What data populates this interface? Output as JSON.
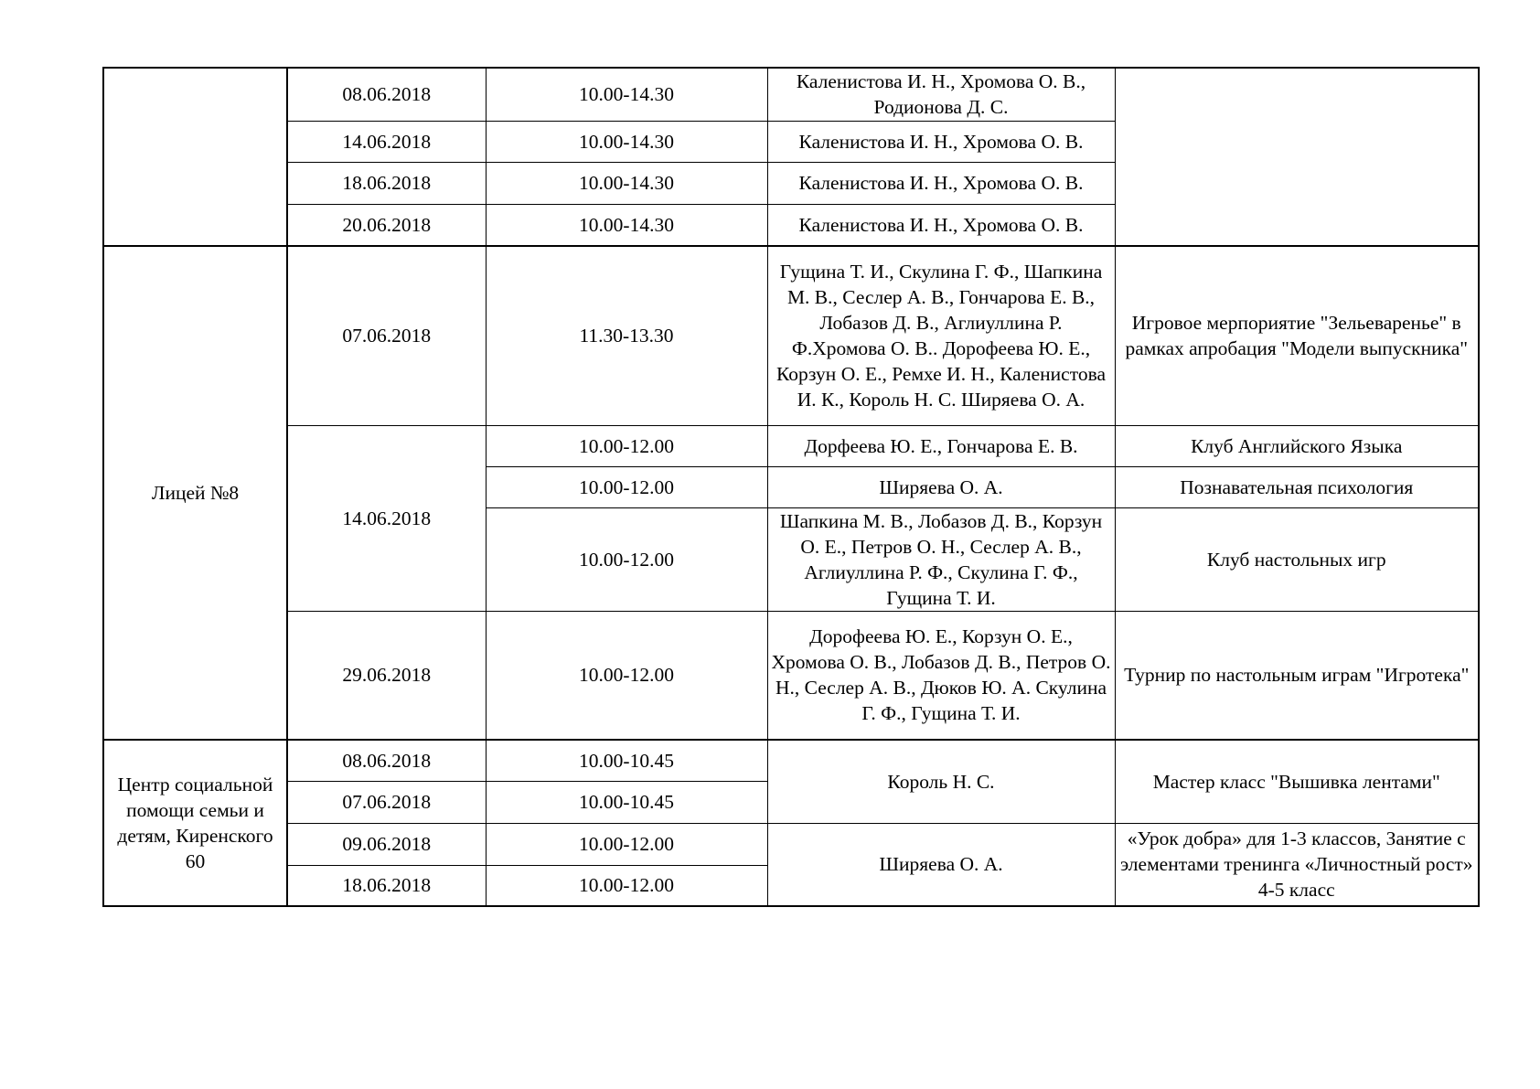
{
  "groups": [
    {
      "venue": "",
      "rows": [
        {
          "date": "08.06.2018",
          "time": "10.00-14.30",
          "staff": "Каленистова И. Н., Хромова О. В., Родионова Д. С."
        },
        {
          "date": "14.06.2018",
          "time": "10.00-14.30",
          "staff": "Каленистова И. Н., Хромова О. В."
        },
        {
          "date": "18.06.2018",
          "time": "10.00-14.30",
          "staff": "Каленистова И. Н., Хромова О. В."
        },
        {
          "date": "20.06.2018",
          "time": "10.00-14.30",
          "staff": "Каленистова И. Н., Хромова О. В."
        }
      ],
      "event": ""
    },
    {
      "venue": "Лицей №8",
      "rows": [
        {
          "date": "07.06.2018",
          "time": "11.30-13.30",
          "staff": "Гущина Т. И., Скулина Г. Ф., Шапкина М. В., Сеслер А. В., Гончарова Е. В., Лобазов Д. В., Аглиуллина Р. Ф.Хромова О. В.. Дорофеева Ю. Е., Корзун О. Е., Ремхе И. Н., Каленистова И. К., Король Н. С. Ширяева О. А.",
          "event": "Игровое мерпориятие \"Зельеваренье\" в рамках апробация \"Модели выпускника\""
        },
        {
          "date": "14.06.2018",
          "time": "10.00-12.00",
          "staff": "Дорфеева Ю. Е., Гончарова Е. В.",
          "event": "Клуб Английского Языка"
        },
        {
          "time": "10.00-12.00",
          "staff": "Ширяева О. А.",
          "event": "Познавательная психология"
        },
        {
          "time": "10.00-12.00",
          "staff": "Шапкина М. В., Лобазов Д. В., Корзун О. Е., Петров О. Н., Сеслер А. В., Аглиуллина Р. Ф., Скулина Г. Ф., Гущина Т. И.",
          "event": "Клуб настольных игр"
        },
        {
          "date": "29.06.2018",
          "time": "10.00-12.00",
          "staff": "Дорофеева Ю. Е., Корзун О. Е., Хромова О. В., Лобазов Д. В., Петров О. Н., Сеслер А. В., Дюков Ю. А. Скулина Г. Ф., Гущина Т. И.",
          "event": "Турнир по настольным играм \"Игротека\""
        }
      ]
    },
    {
      "venue": "Центр социальной помощи семьи и детям, Киренского 60",
      "rows": [
        {
          "date": "08.06.2018",
          "time": "10.00-10.45",
          "staff": "Король Н. С.",
          "event": "Мастер класс \"Вышивка лентами\""
        },
        {
          "date": "07.06.2018",
          "time": "10.00-10.45"
        },
        {
          "date": "09.06.2018",
          "time": "10.00-12.00",
          "staff": "Ширяева О. А.",
          "event": "«Урок добра» для 1-3 классов, Занятие с элементами тренинга «Личностный рост» 4-5 класс"
        },
        {
          "date": "18.06.2018",
          "time": "10.00-12.00"
        }
      ]
    }
  ]
}
